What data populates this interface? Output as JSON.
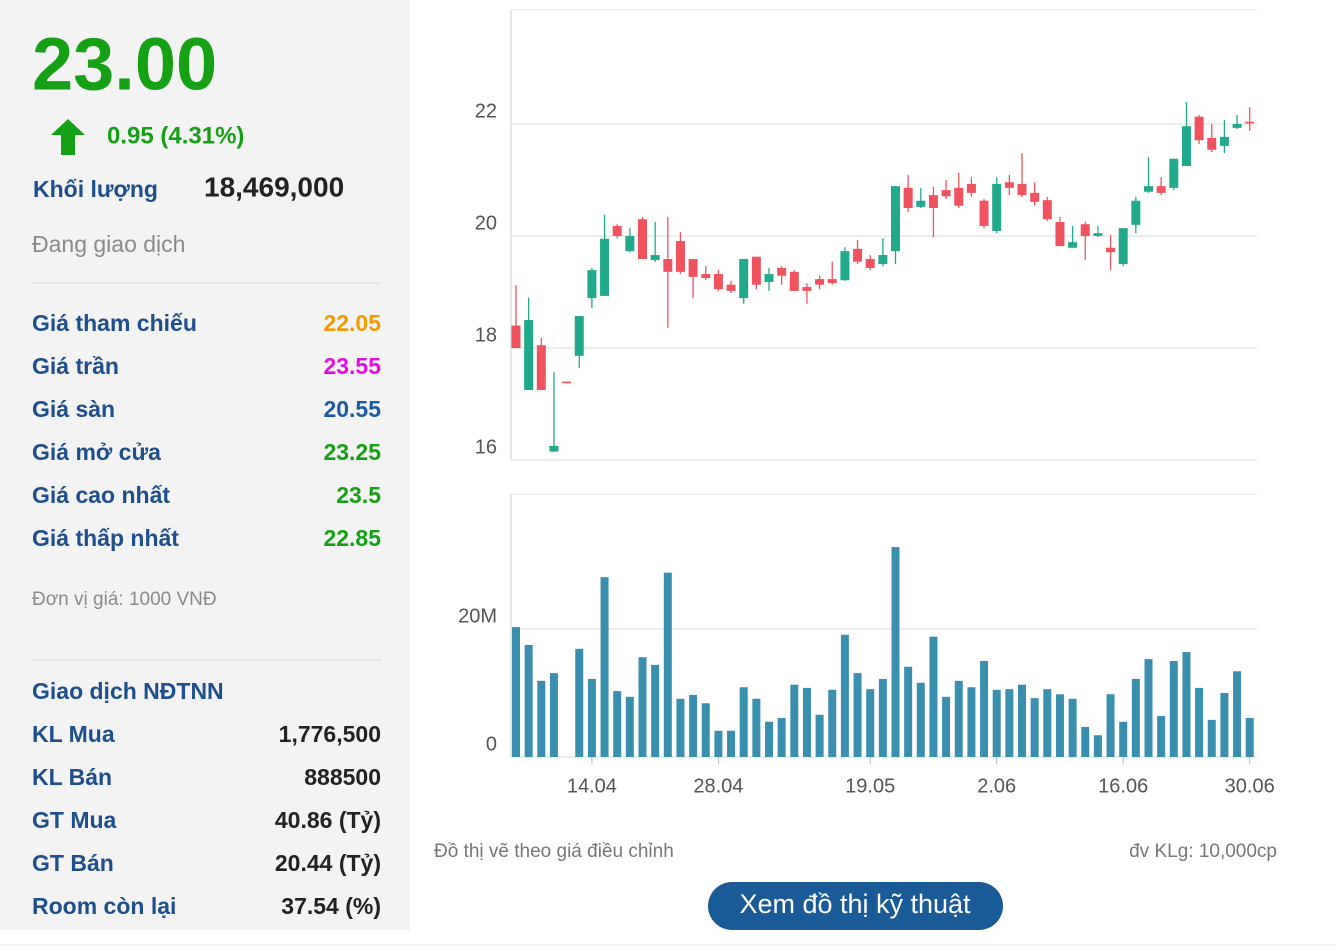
{
  "stock_panel": {
    "price": "23.00",
    "change": "0.95 (4.31%)",
    "volume_label": "Khối lượng",
    "volume": "18,469,000",
    "status": "Đang giao dịch",
    "rows": [
      {
        "label": "Giá tham chiếu",
        "value": "22.05",
        "color": "#f29b00"
      },
      {
        "label": "Giá trần",
        "value": "23.55",
        "color": "#e010e0"
      },
      {
        "label": "Giá sàn",
        "value": "20.55",
        "color": "#1e5aa0"
      },
      {
        "label": "Giá mở cửa",
        "value": "23.25",
        "color": "#16a016"
      },
      {
        "label": "Giá cao nhất",
        "value": "23.5",
        "color": "#16a016"
      },
      {
        "label": "Giá thấp nhất",
        "value": "22.85",
        "color": "#16a016"
      }
    ],
    "unit_note": "Đơn vị giá: 1000 VNĐ",
    "foreign_title": "Giao dịch NĐTNN",
    "foreign_rows": [
      {
        "label": "KL Mua",
        "value": "1,776,500"
      },
      {
        "label": "KL Bán",
        "value": "888500"
      },
      {
        "label": "GT Mua",
        "value": "40.86 (Tỷ)"
      },
      {
        "label": "GT Bán",
        "value": "20.44 (Tỷ)"
      },
      {
        "label": "Room còn lại",
        "value": "37.54 (%)"
      }
    ]
  },
  "chart_data": [
    {
      "type": "candlestick",
      "up_color": "#22a98c",
      "down_color": "#ef5360",
      "ylim": [
        16,
        24
      ],
      "yticks": [
        16,
        18,
        20,
        22
      ],
      "grid": true,
      "open": [
        18.4,
        17.25,
        18.05,
        16.15,
        17.4,
        17.86,
        18.89,
        18.93,
        20.18,
        19.73,
        20.3,
        19.57,
        19.59,
        19.91,
        19.59,
        19.32,
        19.32,
        19.13,
        18.89,
        19.63,
        19.18,
        19.43,
        19.36,
        19.09,
        19.23,
        19.23,
        19.21,
        19.77,
        19.59,
        19.5,
        19.73,
        20.86,
        20.52,
        20.73,
        20.82,
        20.86,
        20.93,
        20.63,
        20.09,
        20.96,
        20.93,
        20.77,
        20.64,
        20.25,
        19.79,
        20.21,
        20.0,
        19.79,
        19.5,
        20.2,
        20.79,
        20.89,
        20.86,
        21.25,
        22.13,
        21.75,
        21.61,
        21.93,
        22.04
      ],
      "high": [
        19.12,
        18.9,
        18.18,
        17.57,
        17.4,
        18.57,
        19.43,
        20.38,
        20.21,
        20.14,
        20.34,
        20.25,
        20.34,
        20.07,
        19.59,
        19.46,
        19.39,
        19.2,
        19.59,
        19.63,
        19.43,
        19.46,
        19.39,
        19.16,
        19.29,
        19.54,
        19.8,
        19.93,
        19.66,
        19.96,
        20.89,
        21.09,
        20.86,
        20.88,
        21.0,
        21.13,
        21.05,
        20.66,
        21.05,
        21.09,
        21.48,
        20.96,
        20.7,
        20.34,
        20.18,
        20.25,
        20.18,
        20.02,
        20.14,
        20.7,
        21.41,
        21.05,
        21.38,
        22.39,
        22.16,
        22.0,
        22.07,
        22.16,
        22.3
      ],
      "low": [
        18.0,
        17.25,
        17.25,
        16.15,
        17.4,
        17.64,
        18.71,
        18.93,
        19.96,
        19.71,
        19.59,
        19.54,
        18.36,
        19.32,
        18.89,
        19.21,
        19.02,
        18.98,
        18.79,
        19.05,
        19.02,
        19.13,
        19.02,
        18.79,
        19.05,
        19.13,
        19.2,
        19.5,
        19.39,
        19.46,
        19.5,
        20.43,
        20.5,
        19.98,
        20.66,
        20.5,
        20.7,
        20.14,
        20.05,
        20.73,
        20.7,
        20.54,
        20.27,
        19.82,
        19.79,
        19.57,
        19.98,
        19.39,
        19.46,
        20.05,
        20.77,
        20.73,
        20.82,
        21.25,
        21.64,
        21.5,
        21.48,
        21.91,
        21.88
      ],
      "close": [
        18.0,
        18.5,
        17.25,
        16.25,
        17.4,
        18.57,
        19.39,
        19.95,
        20.0,
        20.0,
        19.59,
        19.66,
        19.36,
        19.36,
        19.27,
        19.25,
        19.05,
        19.02,
        19.59,
        19.13,
        19.32,
        19.29,
        19.02,
        19.02,
        19.13,
        19.16,
        19.73,
        19.54,
        19.43,
        19.66,
        20.89,
        20.5,
        20.63,
        20.5,
        20.71,
        20.54,
        20.77,
        20.18,
        20.93,
        20.86,
        20.73,
        20.61,
        20.3,
        19.82,
        19.89,
        20.0,
        20.05,
        19.71,
        20.14,
        20.63,
        20.89,
        20.77,
        21.38,
        21.96,
        21.71,
        21.54,
        21.77,
        22.0,
        22.04
      ]
    },
    {
      "type": "bar",
      "color": "#3a8fae",
      "ylim": [
        0,
        41
      ],
      "yticks": [
        0,
        {
          "value": 20,
          "label": "20M"
        }
      ],
      "grid": true,
      "categories": [
        null,
        null,
        null,
        null,
        null,
        null,
        "14.04",
        null,
        null,
        null,
        null,
        null,
        null,
        null,
        null,
        null,
        "28.04",
        null,
        null,
        null,
        null,
        null,
        null,
        null,
        null,
        null,
        null,
        null,
        "19.05",
        null,
        null,
        null,
        null,
        null,
        null,
        null,
        null,
        null,
        "2.06",
        null,
        null,
        null,
        null,
        null,
        null,
        null,
        null,
        null,
        "16.06",
        null,
        null,
        null,
        null,
        null,
        null,
        null,
        null,
        null,
        "30.06"
      ],
      "values": [
        20.3,
        17.5,
        11.9,
        13.1,
        null,
        16.9,
        12.2,
        28.1,
        10.3,
        9.4,
        15.6,
        14.4,
        28.8,
        9.1,
        9.7,
        8.4,
        4.1,
        4.1,
        10.9,
        9.1,
        5.5,
        6.1,
        11.3,
        10.8,
        6.6,
        10.5,
        19.1,
        13.1,
        10.6,
        12.2,
        32.8,
        14.1,
        11.6,
        18.8,
        9.4,
        11.9,
        10.9,
        15.0,
        10.5,
        10.6,
        11.3,
        9.2,
        10.6,
        9.8,
        9.1,
        4.7,
        3.4,
        9.8,
        5.5,
        12.2,
        15.3,
        6.4,
        15.0,
        16.4,
        10.8,
        5.8,
        10.0,
        13.4,
        6.1
      ]
    }
  ],
  "footer": {
    "note": "Đồ thị vẽ theo giá điều chỉnh",
    "volume_unit": "đv KLg: 10,000cp",
    "button": "Xem đồ thị kỹ thuật"
  }
}
